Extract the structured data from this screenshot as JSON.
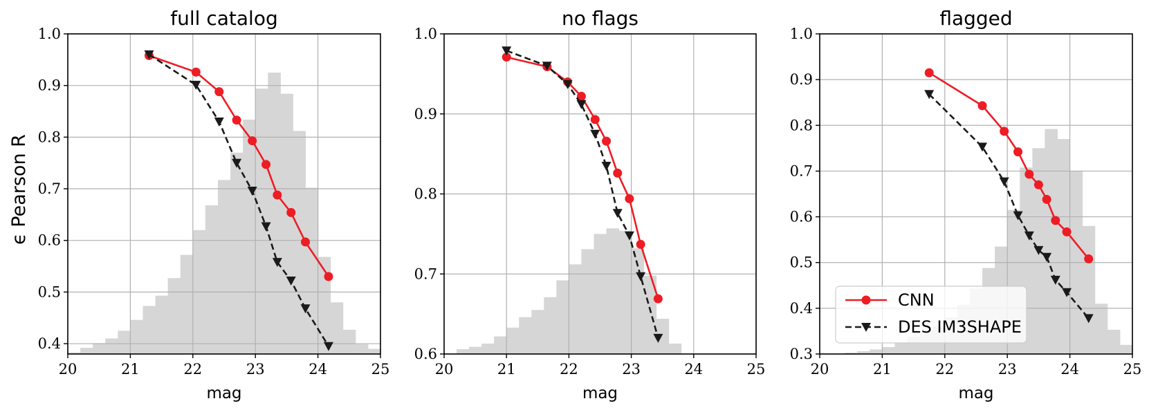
{
  "chart_data": [
    {
      "type": "line",
      "title": "full catalog",
      "xlabel": "mag",
      "ylabel": "ϵ Pearson R",
      "xlim": [
        20,
        25
      ],
      "ylim": [
        0.38,
        1.0
      ],
      "xticks": [
        "20",
        "21",
        "22",
        "23",
        "24",
        "25"
      ],
      "yticks": [
        "0.4",
        "0.5",
        "0.6",
        "0.7",
        "0.8",
        "0.9",
        "1.0"
      ],
      "grid": true,
      "histogram": {
        "bin_start": 20.0,
        "bin_width": 0.2,
        "tops": [
          0.383,
          0.392,
          0.401,
          0.41,
          0.425,
          0.446,
          0.473,
          0.493,
          0.527,
          0.572,
          0.62,
          0.668,
          0.717,
          0.77,
          0.834,
          0.894,
          0.925,
          0.884,
          0.812,
          0.702,
          0.568,
          0.48,
          0.427,
          0.399,
          0.39
        ]
      },
      "series": [
        {
          "name": "CNN",
          "x": [
            21.3,
            22.05,
            22.42,
            22.7,
            22.95,
            23.17,
            23.35,
            23.57,
            23.8,
            24.17
          ],
          "y": [
            0.958,
            0.926,
            0.888,
            0.833,
            0.793,
            0.747,
            0.688,
            0.654,
            0.597,
            0.53
          ]
        },
        {
          "name": "DES IM3SHAPE",
          "x": [
            21.3,
            22.05,
            22.42,
            22.7,
            22.95,
            23.17,
            23.35,
            23.57,
            23.8,
            24.17
          ],
          "y": [
            0.96,
            0.901,
            0.83,
            0.75,
            0.696,
            0.627,
            0.558,
            0.522,
            0.468,
            0.395
          ]
        }
      ]
    },
    {
      "type": "line",
      "title": "no flags",
      "xlabel": "mag",
      "ylabel": "",
      "xlim": [
        20,
        25
      ],
      "ylim": [
        0.6,
        1.0
      ],
      "xticks": [
        "20",
        "21",
        "22",
        "23",
        "24",
        "25"
      ],
      "yticks": [
        "0.6",
        "0.7",
        "0.8",
        "0.9",
        "1.0"
      ],
      "grid": true,
      "histogram": {
        "bin_start": 20.2,
        "bin_width": 0.2,
        "tops": [
          0.606,
          0.609,
          0.613,
          0.622,
          0.633,
          0.646,
          0.655,
          0.671,
          0.692,
          0.712,
          0.731,
          0.75,
          0.757,
          0.754,
          0.732,
          0.698,
          0.644,
          0.613
        ]
      },
      "series": [
        {
          "name": "CNN",
          "x": [
            21.0,
            21.65,
            21.98,
            22.2,
            22.42,
            22.6,
            22.78,
            22.97,
            23.15,
            23.43
          ],
          "y": [
            0.971,
            0.959,
            0.94,
            0.922,
            0.893,
            0.866,
            0.826,
            0.794,
            0.737,
            0.669
          ]
        },
        {
          "name": "DES IM3SHAPE",
          "x": [
            21.0,
            21.65,
            21.98,
            22.2,
            22.42,
            22.6,
            22.78,
            22.97,
            23.15,
            23.43
          ],
          "y": [
            0.979,
            0.96,
            0.937,
            0.912,
            0.875,
            0.835,
            0.776,
            0.748,
            0.697,
            0.62
          ]
        }
      ]
    },
    {
      "type": "line",
      "title": "flagged",
      "xlabel": "mag",
      "ylabel": "",
      "xlim": [
        20,
        25
      ],
      "ylim": [
        0.3,
        1.0
      ],
      "xticks": [
        "20",
        "21",
        "22",
        "23",
        "24",
        "25"
      ],
      "yticks": [
        "0.3",
        "0.4",
        "0.5",
        "0.6",
        "0.7",
        "0.8",
        "0.9",
        "1.0"
      ],
      "grid": true,
      "legend": "lower-left",
      "histogram": {
        "bin_start": 20.4,
        "bin_width": 0.2,
        "tops": [
          0.303,
          0.306,
          0.31,
          0.315,
          0.324,
          0.338,
          0.347,
          0.36,
          0.38,
          0.408,
          0.443,
          0.488,
          0.535,
          0.615,
          0.708,
          0.75,
          0.792,
          0.77,
          0.7,
          0.58,
          0.41,
          0.353,
          0.32,
          0.31
        ]
      },
      "series": [
        {
          "name": "CNN",
          "x": [
            21.75,
            22.6,
            22.95,
            23.17,
            23.35,
            23.5,
            23.63,
            23.77,
            23.95,
            24.3
          ],
          "y": [
            0.915,
            0.843,
            0.787,
            0.742,
            0.693,
            0.67,
            0.638,
            0.592,
            0.567,
            0.508
          ]
        },
        {
          "name": "DES IM3SHAPE",
          "x": [
            21.75,
            22.6,
            22.95,
            23.17,
            23.35,
            23.5,
            23.63,
            23.77,
            23.95,
            24.3
          ],
          "y": [
            0.868,
            0.753,
            0.677,
            0.603,
            0.559,
            0.527,
            0.512,
            0.462,
            0.435,
            0.378
          ]
        }
      ]
    }
  ],
  "legend": {
    "cnn_label": "CNN",
    "des_label": "DES IM3SHAPE"
  },
  "colors": {
    "cnn": "#ee1c24",
    "des": "#1a1a1a",
    "histogram": "#d6d6d6",
    "grid": "#b0b0b0"
  }
}
